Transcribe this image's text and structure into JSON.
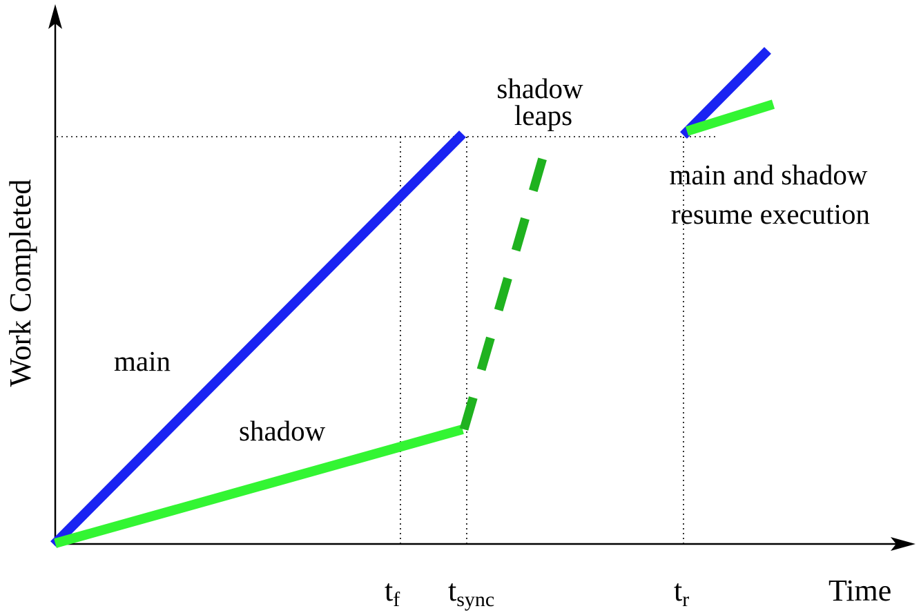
{
  "colors": {
    "main": "#1a23f2",
    "shadow": "#33f533",
    "shadow_leap": "#1fb21f",
    "axis": "#000000"
  },
  "axes": {
    "x_title": "Time",
    "y_title": "Work Completed",
    "tick_base": "t",
    "ticks": [
      {
        "sub": "f"
      },
      {
        "sub": "sync"
      },
      {
        "sub": "r"
      }
    ]
  },
  "labels": {
    "main": "main",
    "shadow": "shadow",
    "shadow_leaps_line1": "shadow",
    "shadow_leaps_line2": "leaps",
    "resume_line1": "main and shadow",
    "resume_line2": "resume execution"
  }
}
